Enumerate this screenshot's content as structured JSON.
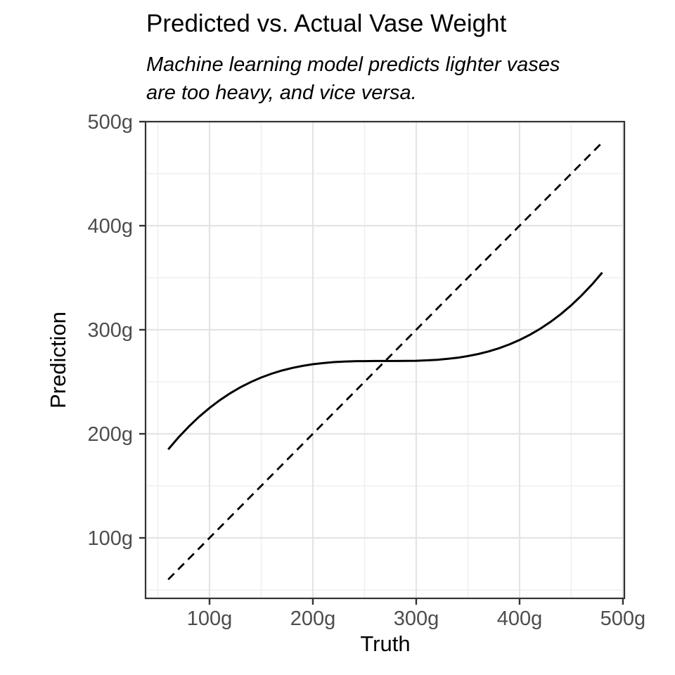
{
  "chart_data": {
    "type": "line",
    "title": "Predicted vs. Actual Vase Weight",
    "subtitle": "Machine learning model predicts lighter vases are too heavy, and vice versa.",
    "xlabel": "Truth",
    "ylabel": "Prediction",
    "xlim": [
      38.1,
      501.4
    ],
    "ylim": [
      41.9,
      500.0
    ],
    "x_ticks": {
      "values": [
        100,
        200,
        300,
        400,
        500
      ],
      "labels": [
        "100g",
        "200g",
        "300g",
        "400g",
        "500g"
      ]
    },
    "y_ticks": {
      "values": [
        100,
        200,
        300,
        400,
        500
      ],
      "labels": [
        "100g",
        "200g",
        "300g",
        "400g",
        "500g"
      ]
    },
    "x_minor": [
      50,
      150,
      250,
      350,
      450
    ],
    "y_minor": [
      50,
      150,
      250,
      350,
      450
    ],
    "grid": "major-and-minor",
    "legend": "none",
    "theme": {
      "background": "#ffffff",
      "panel_background": "#ffffff",
      "panel_border": "#333333",
      "grid_major": "#e4e4e4",
      "grid_minor": "#efefef",
      "axis_text": "#4d4d4d",
      "tick_mark": "#333333",
      "line_color": "#000000"
    },
    "series": [
      {
        "name": "model prediction curve",
        "style": "solid",
        "color": "#000000",
        "width": 3,
        "points": [
          [
            60,
            185.0
          ],
          [
            70,
            196.6
          ],
          [
            80,
            207.0
          ],
          [
            90,
            216.5
          ],
          [
            100,
            224.9
          ],
          [
            110,
            232.4
          ],
          [
            120,
            239.0
          ],
          [
            130,
            244.8
          ],
          [
            140,
            249.8
          ],
          [
            150,
            254.1
          ],
          [
            160,
            257.8
          ],
          [
            170,
            260.8
          ],
          [
            180,
            263.3
          ],
          [
            190,
            265.3
          ],
          [
            200,
            266.9
          ],
          [
            210,
            268.0
          ],
          [
            220,
            268.9
          ],
          [
            230,
            269.4
          ],
          [
            240,
            269.8
          ],
          [
            250,
            269.9
          ],
          [
            260,
            270.0
          ],
          [
            270,
            270.0
          ],
          [
            280,
            270.0
          ],
          [
            290,
            270.1
          ],
          [
            300,
            270.2
          ],
          [
            310,
            270.6
          ],
          [
            320,
            271.1
          ],
          [
            330,
            272.0
          ],
          [
            340,
            273.1
          ],
          [
            350,
            274.7
          ],
          [
            360,
            276.7
          ],
          [
            370,
            279.2
          ],
          [
            380,
            282.2
          ],
          [
            390,
            285.9
          ],
          [
            400,
            290.2
          ],
          [
            410,
            295.2
          ],
          [
            420,
            301.0
          ],
          [
            430,
            307.6
          ],
          [
            440,
            315.1
          ],
          [
            450,
            323.5
          ],
          [
            460,
            333.0
          ],
          [
            470,
            343.4
          ],
          [
            480,
            355.0
          ]
        ]
      },
      {
        "name": "identity reference line (y = x)",
        "style": "dashed",
        "color": "#000000",
        "width": 2.8,
        "points": [
          [
            60,
            60
          ],
          [
            480,
            480
          ]
        ]
      }
    ]
  }
}
